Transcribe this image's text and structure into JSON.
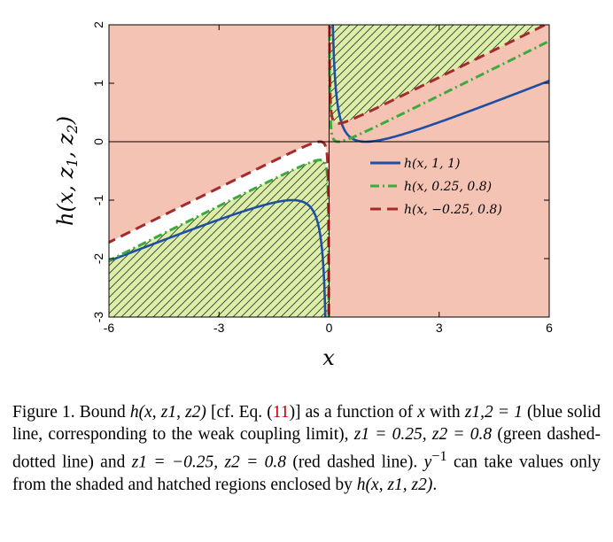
{
  "chart_data": {
    "type": "line",
    "xlabel": "x",
    "ylabel": "h(x, z1, z2)",
    "xlim": [
      -6,
      6
    ],
    "ylim": [
      -3,
      2
    ],
    "xticks": [
      "-6",
      "-3",
      "0",
      "3",
      "6"
    ],
    "yticks": [
      "2",
      "1",
      "0",
      "-1",
      "-2",
      "-3"
    ],
    "grid": false,
    "legend_position": "center-right",
    "series": [
      {
        "name": "h(x, 1, 1)",
        "style": "solid",
        "color": "#1f4ea3",
        "fill": "#d4eff2",
        "z1": 1,
        "z2": 1
      },
      {
        "name": "h(x, 0.25, 0.8)",
        "style": "dash-dot",
        "color": "#3caa3c",
        "fill": "#dcefa8",
        "z1": 0.25,
        "z2": 0.8
      },
      {
        "name": "h(x, −0.25, 0.8)",
        "style": "dashed",
        "color": "#a52a2a",
        "fill": "#f4c3b4",
        "z1": -0.25,
        "z2": 0.8
      }
    ]
  },
  "caption": {
    "figure_label": "Figure 1.",
    "bound": "Bound",
    "h_expr": "h(x, z1, z2)",
    "cf": "[cf. Eq. (",
    "eq_ref": "11",
    "cf_end": ")] as a function of",
    "x1": "x",
    "with": "with",
    "z12": "z1,2 = 1",
    "blue_desc": "(blue solid line, corresponding to the weak coupling limit),",
    "z1a": "z1 = 0.25, z2 = 0.8",
    "green_desc": "(green dashed-dotted line) and",
    "z1b": "z1 = −0.25,",
    "z2b": "z2 = 0.8",
    "red_desc": "(red dashed line).",
    "yinv": "y",
    "yinv_sup": "−1",
    "tail": "can take values only from the shaded and hatched regions enclosed by",
    "h_expr2": "h(x, z1, z2)",
    "end": "."
  }
}
